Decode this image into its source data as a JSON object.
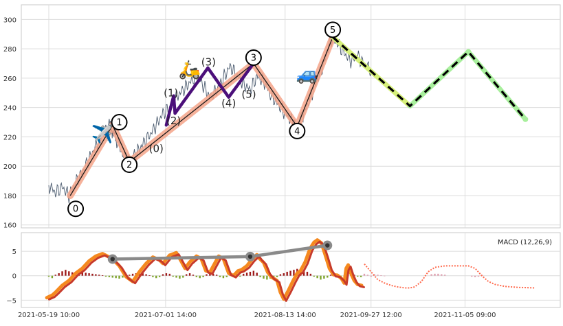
{
  "chart_data": [
    {
      "type": "line",
      "panel": "price",
      "grid": true,
      "ylim": [
        158,
        310
      ],
      "y_ticks": [
        160,
        180,
        200,
        220,
        240,
        260,
        280,
        300
      ],
      "price_path": [
        [
          0.0,
          187
        ],
        [
          1.0,
          182
        ],
        [
          2.0,
          186
        ],
        [
          3.0,
          180
        ],
        [
          4.0,
          189
        ],
        [
          5.0,
          196
        ],
        [
          6.0,
          205
        ],
        [
          7.0,
          214
        ],
        [
          8.0,
          221
        ],
        [
          9.0,
          228
        ],
        [
          9.5,
          224
        ],
        [
          10.0,
          219
        ],
        [
          11.0,
          208
        ],
        [
          12.0,
          203
        ],
        [
          13.0,
          209
        ],
        [
          14.0,
          215
        ],
        [
          15.0,
          221
        ],
        [
          16.0,
          228
        ],
        [
          17.0,
          236
        ],
        [
          18.0,
          240
        ],
        [
          19.0,
          247
        ],
        [
          20.0,
          252
        ],
        [
          21.0,
          257
        ],
        [
          22.0,
          262
        ],
        [
          23.0,
          255
        ],
        [
          24.0,
          247
        ],
        [
          25.0,
          252
        ],
        [
          26.0,
          260
        ],
        [
          27.0,
          268
        ],
        [
          28.0,
          262
        ],
        [
          29.0,
          256
        ],
        [
          30.0,
          252
        ],
        [
          31.0,
          261
        ],
        [
          32.0,
          258
        ],
        [
          33.0,
          249
        ],
        [
          34.0,
          243
        ],
        [
          35.0,
          237
        ],
        [
          36.0,
          232
        ],
        [
          37.0,
          227
        ],
        [
          38.0,
          236
        ],
        [
          39.0,
          247
        ],
        [
          40.0,
          259
        ],
        [
          41.0,
          270
        ],
        [
          42.0,
          287
        ],
        [
          43.0,
          284
        ],
        [
          44.0,
          277
        ],
        [
          45.0,
          272
        ],
        [
          46.0,
          275
        ],
        [
          47.0,
          269
        ],
        [
          48.0,
          266
        ]
      ],
      "waves": [
        {
          "label": "0",
          "x": 3.2,
          "y": 180
        },
        {
          "label": "1",
          "x": 9.5,
          "y": 228
        },
        {
          "label": "2",
          "x": 12.0,
          "y": 203
        },
        {
          "label": "3",
          "x": 30.5,
          "y": 270
        },
        {
          "label": "4",
          "x": 37.0,
          "y": 227
        },
        {
          "label": "5",
          "x": 42.3,
          "y": 288
        }
      ],
      "wave_labels": [
        {
          "text": "0",
          "x": 4.0,
          "y": 171,
          "circled": true
        },
        {
          "text": "1",
          "x": 10.5,
          "y": 230,
          "circled": true
        },
        {
          "text": "2",
          "x": 12.0,
          "y": 201,
          "circled": true
        },
        {
          "text": "3",
          "x": 30.5,
          "y": 274,
          "circled": true
        },
        {
          "text": "4",
          "x": 37.0,
          "y": 224,
          "circled": true
        },
        {
          "text": "5",
          "x": 42.3,
          "y": 293,
          "circled": true
        },
        {
          "text": "(0)",
          "x": 16.0,
          "y": 212,
          "circled": false
        },
        {
          "text": "(1)",
          "x": 18.2,
          "y": 250,
          "circled": false
        },
        {
          "text": "(2)",
          "x": 18.6,
          "y": 231,
          "circled": false
        },
        {
          "text": "(3)",
          "x": 23.8,
          "y": 271,
          "circled": false
        },
        {
          "text": "(4)",
          "x": 26.8,
          "y": 243,
          "circled": false
        },
        {
          "text": "(5)",
          "x": 29.8,
          "y": 249,
          "circled": false
        }
      ],
      "sub_waves": [
        [
          17.5,
          228
        ],
        [
          18.6,
          248
        ],
        [
          18.8,
          236
        ],
        [
          23.7,
          267
        ],
        [
          26.8,
          247
        ],
        [
          30.5,
          270
        ]
      ],
      "projection": [
        [
          42.3,
          288
        ],
        [
          53.8,
          241
        ],
        [
          62.5,
          278
        ],
        [
          71.0,
          232
        ]
      ],
      "emoji": [
        {
          "char": "✈️",
          "x": 8.0,
          "y": 222
        },
        {
          "char": "🛵",
          "x": 21.0,
          "y": 266
        },
        {
          "char": "🚙",
          "x": 38.5,
          "y": 263
        }
      ]
    },
    {
      "type": "line",
      "panel": "macd",
      "legend": "MACD (12,26,9)",
      "legend_position": "top-right",
      "grid": true,
      "ylim": [
        -6.5,
        8.8
      ],
      "y_ticks": [
        5,
        0,
        -5
      ],
      "x_ticks": [
        "2021-05-19 10:00",
        "2021-07-01 14:00",
        "2021-08-13 14:00",
        "2021-09-27 12:00",
        "2021-11-05 09:00"
      ],
      "x_tick_positions": [
        0,
        17.4,
        35.2,
        48.0,
        62.0
      ],
      "macd_path": [
        [
          -0.3,
          -4.5
        ],
        [
          0.5,
          -4.0
        ],
        [
          1.0,
          -3.4
        ],
        [
          2.0,
          -2.0
        ],
        [
          3.0,
          -1.0
        ],
        [
          4.0,
          0.5
        ],
        [
          5.0,
          1.5
        ],
        [
          6.0,
          3.0
        ],
        [
          7.0,
          4.0
        ],
        [
          8.0,
          4.5
        ],
        [
          9.0,
          3.8
        ],
        [
          9.5,
          3.4
        ],
        [
          10.5,
          2.0
        ],
        [
          11.5,
          -0.2
        ],
        [
          12.5,
          -1.2
        ],
        [
          13.5,
          0.8
        ],
        [
          14.5,
          2.5
        ],
        [
          15.5,
          3.8
        ],
        [
          16.5,
          3.2
        ],
        [
          17.0,
          2.5
        ],
        [
          18.0,
          4.2
        ],
        [
          19.0,
          4.7
        ],
        [
          19.7,
          3.0
        ],
        [
          20.3,
          1.5
        ],
        [
          21.0,
          2.8
        ],
        [
          22.0,
          4.0
        ],
        [
          22.7,
          3.5
        ],
        [
          23.4,
          1.0
        ],
        [
          24.0,
          0.7
        ],
        [
          24.6,
          2.2
        ],
        [
          25.3,
          4.0
        ],
        [
          26.0,
          3.5
        ],
        [
          26.8,
          0.5
        ],
        [
          27.5,
          0.0
        ],
        [
          28.2,
          1.0
        ],
        [
          28.7,
          1.2
        ],
        [
          29.5,
          2.0
        ],
        [
          30.3,
          3.4
        ],
        [
          31.0,
          4.3
        ],
        [
          31.4,
          3.5
        ],
        [
          32.0,
          2.7
        ],
        [
          32.6,
          0.7
        ],
        [
          33.2,
          -0.3
        ],
        [
          34.0,
          -1.0
        ],
        [
          34.5,
          -3.4
        ],
        [
          35.0,
          -4.8
        ],
        [
          35.7,
          -3.0
        ],
        [
          36.4,
          -1.0
        ],
        [
          37.0,
          0.5
        ],
        [
          37.5,
          1.0
        ],
        [
          38.2,
          2.8
        ],
        [
          38.9,
          5.5
        ],
        [
          39.5,
          6.8
        ],
        [
          40.0,
          7.3
        ],
        [
          40.6,
          6.7
        ],
        [
          41.2,
          4.2
        ],
        [
          41.8,
          1.5
        ],
        [
          42.4,
          0.2
        ],
        [
          43.0,
          0.1
        ],
        [
          43.6,
          -0.6
        ],
        [
          44.0,
          -1.5
        ],
        [
          44.3,
          1.5
        ],
        [
          44.6,
          2.2
        ],
        [
          45.0,
          0.5
        ],
        [
          45.5,
          -1.0
        ],
        [
          46.0,
          -1.8
        ],
        [
          46.6,
          -2.0
        ]
      ],
      "macd_tail": [
        [
          47.0,
          2.4
        ],
        [
          48.0,
          0.8
        ],
        [
          49.0,
          -0.8
        ],
        [
          50.0,
          -1.5
        ],
        [
          51.0,
          -2.0
        ],
        [
          52.0,
          -2.3
        ],
        [
          53.0,
          -2.5
        ],
        [
          53.8,
          -2.5
        ],
        [
          54.5,
          -2.3
        ],
        [
          55.5,
          -1.2
        ],
        [
          56.5,
          0.8
        ],
        [
          57.5,
          1.7
        ],
        [
          59.0,
          2.0
        ],
        [
          60.5,
          2.0
        ],
        [
          62.5,
          2.0
        ],
        [
          63.5,
          1.5
        ],
        [
          64.5,
          0.0
        ],
        [
          65.5,
          -1.2
        ],
        [
          66.5,
          -1.8
        ],
        [
          68.0,
          -2.2
        ],
        [
          70.0,
          -2.4
        ],
        [
          72.5,
          -2.5
        ]
      ],
      "peaks": [
        [
          9.5,
          3.4
        ],
        [
          30.0,
          3.9
        ],
        [
          41.5,
          6.2
        ]
      ],
      "histogram": [
        [
          0.0,
          -0.2
        ],
        [
          0.5,
          -0.5
        ],
        [
          1.0,
          0.2
        ],
        [
          1.5,
          0.5
        ],
        [
          2.0,
          0.9
        ],
        [
          2.5,
          1.2
        ],
        [
          3.0,
          0.9
        ],
        [
          3.5,
          0.7
        ],
        [
          4.0,
          0.6
        ],
        [
          4.5,
          0.5
        ],
        [
          5.0,
          0.7
        ],
        [
          5.5,
          0.6
        ],
        [
          6.0,
          0.5
        ],
        [
          6.5,
          0.4
        ],
        [
          7.0,
          0.3
        ],
        [
          7.5,
          0.2
        ],
        [
          8.0,
          0.1
        ],
        [
          8.5,
          -0.2
        ],
        [
          9.0,
          -0.3
        ],
        [
          9.5,
          -0.4
        ],
        [
          10.0,
          -0.5
        ],
        [
          10.5,
          -0.6
        ],
        [
          11.0,
          -0.4
        ],
        [
          11.5,
          -0.2
        ],
        [
          12.0,
          0.2
        ],
        [
          12.5,
          0.4
        ],
        [
          13.0,
          0.5
        ],
        [
          13.5,
          0.6
        ],
        [
          14.0,
          0.5
        ],
        [
          14.5,
          0.3
        ],
        [
          15.0,
          0.1
        ],
        [
          15.5,
          -0.3
        ],
        [
          16.0,
          -0.5
        ],
        [
          16.5,
          -0.3
        ],
        [
          17.0,
          0.3
        ],
        [
          17.5,
          0.5
        ],
        [
          18.0,
          0.4
        ],
        [
          18.5,
          -0.2
        ],
        [
          19.0,
          -0.4
        ],
        [
          19.5,
          -0.6
        ],
        [
          20.0,
          -0.4
        ],
        [
          20.5,
          0.3
        ],
        [
          21.0,
          0.5
        ],
        [
          21.5,
          0.2
        ],
        [
          22.0,
          -0.3
        ],
        [
          22.5,
          -0.5
        ],
        [
          23.0,
          -0.3
        ],
        [
          23.5,
          0.3
        ],
        [
          24.0,
          0.5
        ],
        [
          24.5,
          0.4
        ],
        [
          25.0,
          0.2
        ],
        [
          25.5,
          -0.3
        ],
        [
          26.0,
          -0.5
        ],
        [
          26.5,
          -0.3
        ],
        [
          27.0,
          0.2
        ],
        [
          27.5,
          0.4
        ],
        [
          28.0,
          0.3
        ],
        [
          28.5,
          -0.2
        ],
        [
          29.0,
          0.4
        ],
        [
          29.5,
          0.6
        ],
        [
          30.0,
          0.8
        ],
        [
          30.5,
          1.0
        ],
        [
          31.0,
          0.6
        ],
        [
          31.5,
          -0.3
        ],
        [
          32.0,
          -0.6
        ],
        [
          32.5,
          -0.8
        ],
        [
          33.0,
          -0.6
        ],
        [
          33.5,
          -0.4
        ],
        [
          34.0,
          -0.3
        ],
        [
          34.5,
          0.3
        ],
        [
          35.0,
          0.5
        ],
        [
          35.5,
          0.8
        ],
        [
          36.0,
          1.0
        ],
        [
          36.5,
          1.2
        ],
        [
          37.0,
          1.4
        ],
        [
          37.5,
          1.5
        ],
        [
          38.0,
          1.2
        ],
        [
          38.5,
          0.8
        ],
        [
          39.0,
          0.4
        ],
        [
          39.5,
          -0.2
        ],
        [
          40.0,
          -0.5
        ],
        [
          40.5,
          -0.8
        ],
        [
          41.0,
          -0.6
        ],
        [
          41.5,
          -0.4
        ],
        [
          42.0,
          0.2
        ],
        [
          42.5,
          0.5
        ],
        [
          43.0,
          0.3
        ],
        [
          43.5,
          -0.3
        ],
        [
          44.0,
          -0.5
        ],
        [
          44.5,
          0.6
        ],
        [
          45.0,
          0.4
        ],
        [
          45.5,
          0.2
        ],
        [
          46.0,
          -0.2
        ],
        [
          46.5,
          -0.3
        ],
        [
          47.0,
          0.4
        ],
        [
          47.5,
          0.2
        ],
        [
          48.0,
          -0.2
        ],
        [
          48.5,
          0.3
        ],
        [
          49.0,
          0.2
        ],
        [
          49.5,
          0.1
        ],
        [
          50.0,
          -0.1
        ],
        [
          57.0,
          0.3
        ],
        [
          57.5,
          0.4
        ],
        [
          58.0,
          0.4
        ],
        [
          58.5,
          0.3
        ],
        [
          59.0,
          0.2
        ],
        [
          63.0,
          -0.2
        ],
        [
          63.5,
          -0.3
        ],
        [
          64.0,
          -0.2
        ],
        [
          64.5,
          0.2
        ]
      ]
    }
  ],
  "colors": {
    "price_line": "#4a5a6e",
    "wave_line": "#1a1a1a",
    "wave_highlight": "#f4a589",
    "sub_wave": "#4b0f7a",
    "projection_yellow": "#d6f07a",
    "projection_green": "#a8ef9c",
    "projection_dash": "#000000",
    "macd_orange": "#f5891f",
    "macd_red": "#c73a2a",
    "macd_tail": "#ff6a4d",
    "peaks_line": "#8a8a8a",
    "hist_pos": "#9e1b1b",
    "hist_neg": "#7da32b",
    "hist_tail": "#e0a0b0",
    "grid": "#dcdcdc",
    "frame": "#c8c8c8"
  }
}
